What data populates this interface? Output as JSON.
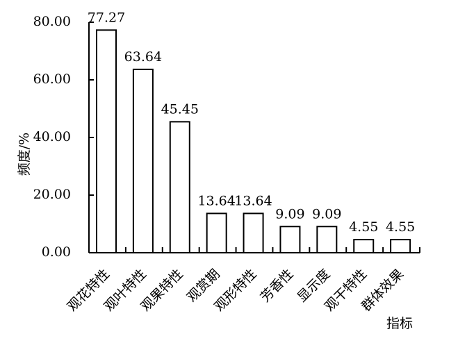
{
  "chart_data": {
    "type": "bar",
    "categories": [
      "观花特性",
      "观叶特性",
      "观果特性",
      "观赏期",
      "观形特性",
      "芳香性",
      "显示度",
      "观干特性",
      "群体效果"
    ],
    "values": [
      77.27,
      63.64,
      45.45,
      13.64,
      13.64,
      9.09,
      9.09,
      4.55,
      4.55
    ],
    "data_labels": [
      "77.27",
      "63.64",
      "45.45",
      "13.64",
      "13.64",
      "9.09",
      "9.09",
      "4.55",
      "4.55"
    ],
    "ylabel": "频度/%",
    "xlabel": "指标",
    "ylim": [
      0,
      80
    ],
    "yticks": [
      0,
      20,
      40,
      60,
      80
    ],
    "ytick_labels": [
      "0.00",
      "20.00",
      "40.00",
      "60.00",
      "80.00"
    ],
    "grid": false,
    "legend": "none",
    "bar_fill": "#ffffff",
    "bar_stroke": "#000000"
  }
}
